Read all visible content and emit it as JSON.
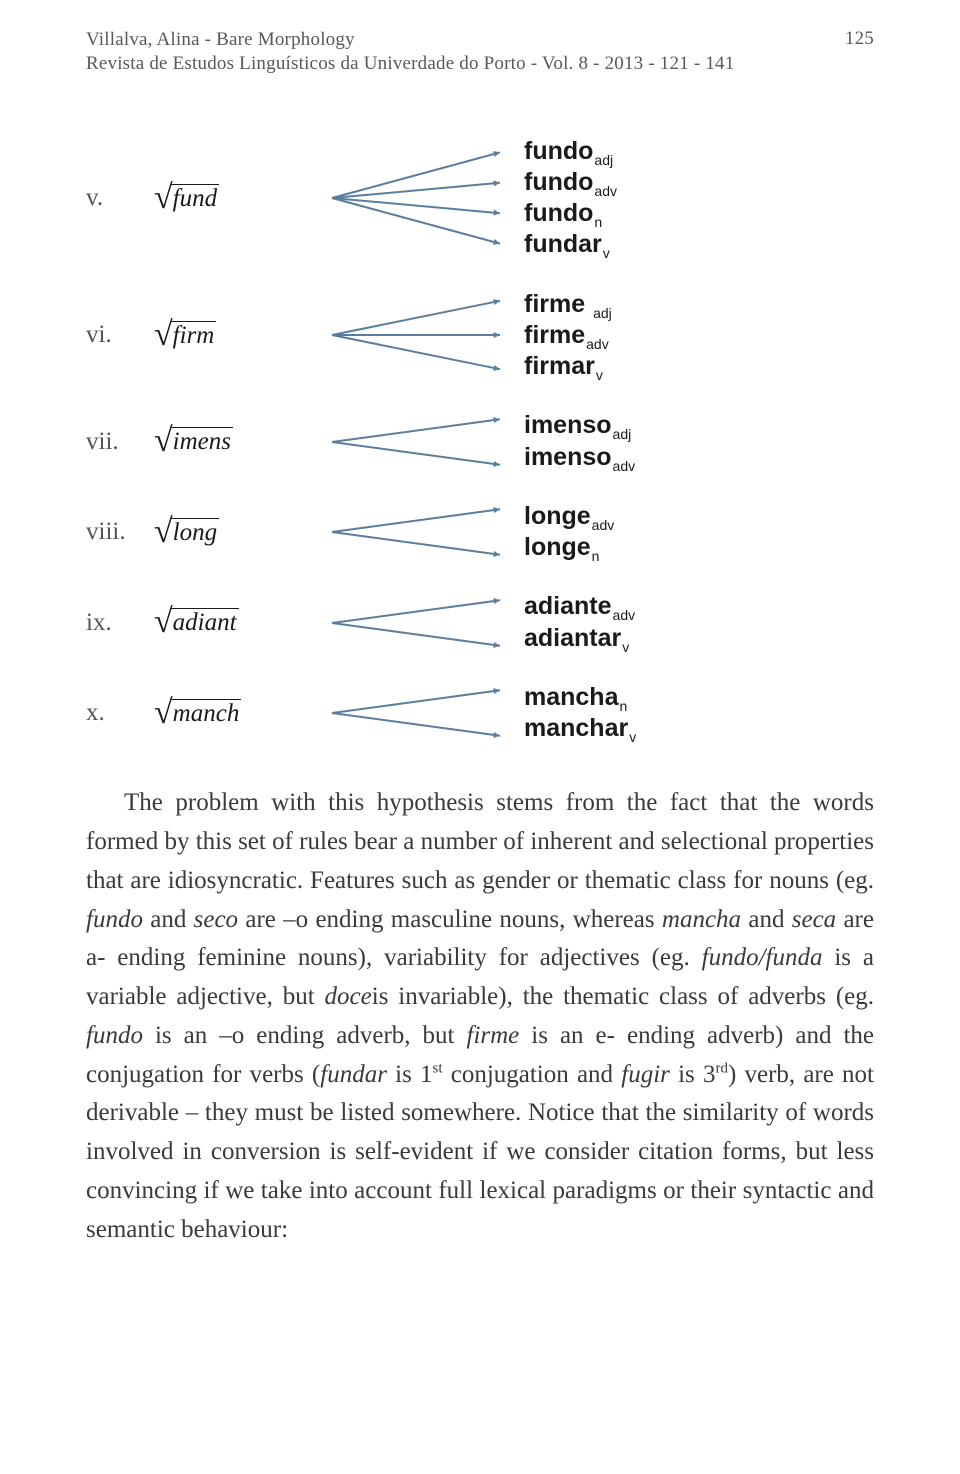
{
  "header": {
    "author_title": "Villalva, Alina - Bare Morphology",
    "journal_line": "Revista de Estudos Linguísticos da Univerdade do Porto - Vol. 8 - 2013 - 121 - 141",
    "page_number": "125"
  },
  "arrow_style": {
    "stroke": "#5b7da0",
    "stroke_width": 2,
    "head_size": 7
  },
  "examples": [
    {
      "numeral": "v.",
      "root": "fund",
      "derivations": [
        {
          "base": "fundo",
          "sub": "adj"
        },
        {
          "base": "fundo",
          "sub": "adv"
        },
        {
          "base": "fundo",
          "sub": "n"
        },
        {
          "base": "fundar",
          "sub": "v"
        }
      ]
    },
    {
      "numeral": "vi.",
      "root": "firm",
      "derivations": [
        {
          "base": "firme",
          "sub": "adj",
          "space_before_sub": true
        },
        {
          "base": "firme",
          "sub": "adv"
        },
        {
          "base": "firmar",
          "sub": "v"
        }
      ]
    },
    {
      "numeral": "vii.",
      "root": "imens",
      "derivations": [
        {
          "base": "imenso",
          "sub": "adj"
        },
        {
          "base": "imenso",
          "sub": "adv"
        }
      ]
    },
    {
      "numeral": "viii.",
      "root": "long",
      "derivations": [
        {
          "base": "longe",
          "sub": "adv"
        },
        {
          "base": "longe",
          "sub": "n"
        }
      ]
    },
    {
      "numeral": "ix.",
      "root": "adiant",
      "derivations": [
        {
          "base": "adiante",
          "sub": "adv"
        },
        {
          "base": "adiantar",
          "sub": "v"
        }
      ]
    },
    {
      "numeral": "x.",
      "root": "manch",
      "derivations": [
        {
          "base": "mancha",
          "sub": "n"
        },
        {
          "base": "manchar",
          "sub": "v"
        }
      ]
    }
  ],
  "paragraph_html": "The problem with this hypothesis stems from the fact that the words formed by this set of rules bear a number of inherent and selectional properties that are idiosyncratic. Features such as gender or thematic class for nouns (eg. <em>fundo</em> and <em>seco</em> are –o ending masculine nouns, whereas <em>mancha</em> and <em>seca</em> are a- ending feminine nouns), variability for adjectives (eg. <em>fundo/funda</em> is a variable adjective, but <em>doce</em>is invariable), the thematic class of adverbs (eg. <em>fundo</em> is an –o ending adverb, but <em>firme</em> is an e- ending adverb) and the conjugation for verbs (<em>fundar</em> is 1<sup>st</sup> conjugation and <em>fugir</em> is 3<sup>rd</sup>) verb, are not derivable – they must be listed somewhere. Notice that the similarity of words involved in conversion is self-evident if we consider citation forms, but less convincing if we take into account full lexical paradigms or their syntactic and semantic behaviour:"
}
